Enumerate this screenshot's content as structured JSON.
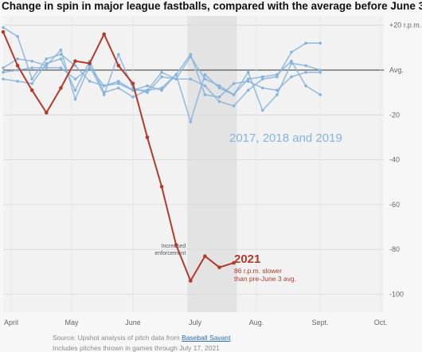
{
  "title": "Change in spin in major league fastballs, compared with the average before June 3",
  "footer": {
    "source_prefix": "Source: Upshot analysis of pitch data from ",
    "source_link": "Baseball Savant",
    "note": "Includes pitches thrown in games through July 17, 2021"
  },
  "chart_data": {
    "type": "line",
    "title": "Change in spin in major league fastballs, compared with the average before June 3",
    "xlabel": "",
    "ylabel": "",
    "x_tick_labels": [
      "April",
      "May",
      "June",
      "July",
      "Aug.",
      "Sept.",
      "Oct."
    ],
    "y_tick_labels": [
      "+20 r.p.m.",
      "Avg.",
      "-20",
      "-40",
      "-60",
      "-80",
      "-100"
    ],
    "ylim": [
      -106,
      22
    ],
    "grid": true,
    "shaded_region": {
      "label": "Increased enforcement",
      "from_week": 13,
      "to_week": 16
    },
    "baseline_label": "Avg.",
    "series": [
      {
        "name": "2017, 2018 and 2019",
        "color": "#86b4dc",
        "note": "",
        "lines": [
          [
            -4,
            -5,
            -6,
            3,
            5,
            -9,
            4,
            -10,
            -8,
            -12,
            -9,
            -1,
            -4,
            -4,
            -7,
            -14,
            -16,
            -9,
            -4,
            -3,
            8,
            12,
            12
          ],
          [
            1,
            5,
            4,
            2,
            9,
            -13,
            2,
            -11,
            7,
            -8,
            -10,
            -3,
            -4,
            6,
            -4,
            -7,
            -11,
            -4,
            -3,
            -2,
            4,
            -7,
            -11
          ],
          [
            19,
            15,
            -4,
            5,
            7,
            2,
            -5,
            -7,
            -5,
            -9,
            -9,
            -8,
            -2,
            7,
            -11,
            -12,
            -6,
            -5,
            -8,
            -9,
            -3,
            -1,
            -1
          ],
          [
            -1,
            0,
            1,
            1,
            1,
            -4,
            1,
            -7,
            -6,
            -9,
            -7,
            -9,
            -2,
            -23,
            -2,
            -8,
            -11,
            -1,
            -18,
            -11,
            3,
            2,
            0
          ]
        ]
      },
      {
        "name": "2021",
        "color": "#b23a2b",
        "note": "86 r.p.m. slower than pre-June 3 avg.",
        "x": [
          0,
          1,
          2,
          3,
          4,
          5,
          6,
          7,
          8,
          9,
          10,
          11,
          12,
          13,
          14,
          15,
          16
        ],
        "y": [
          17,
          2,
          -9,
          -19,
          -8,
          4,
          3,
          16,
          2,
          -6,
          -30,
          -52,
          -78,
          -94,
          -83,
          -88,
          -86
        ]
      }
    ]
  }
}
